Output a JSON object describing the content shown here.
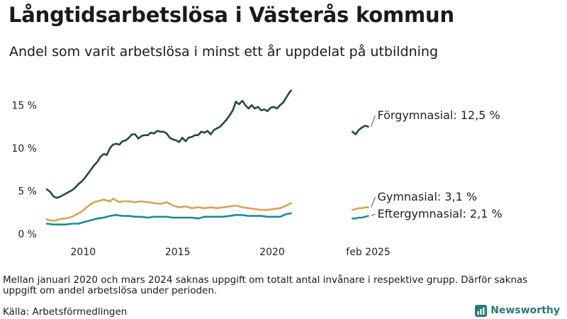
{
  "header": {
    "title": "Långtidsarbetslösa i Västerås kommun",
    "subtitle": "Andel som varit arbetslösa i minst ett år uppdelat på utbildning"
  },
  "footer": {
    "note": "Mellan januari 2020 och mars 2024 saknas uppgift om totalt antal invånare i respektive grupp. Därför saknas uppgift om andel arbetslösa under perioden.",
    "source": "Källa: Arbetsförmedlingen",
    "brand": "Newsworthy"
  },
  "colors": {
    "forgymnasial": "#234a42",
    "gymnasial": "#d6a458",
    "eftergymnasial": "#1a8f88",
    "brand": "#2a7a74"
  },
  "chart_data": {
    "type": "line",
    "x_axis": {
      "tick_labels": [
        "2010",
        "2015",
        "2020",
        "feb 2025"
      ],
      "tick_values": [
        2010,
        2015,
        2020,
        2025.083
      ],
      "range": [
        2008.0,
        2026.0
      ]
    },
    "y_axis": {
      "tick_labels": [
        "0 %",
        "5 %",
        "10 %",
        "15 %"
      ],
      "tick_values": [
        0,
        5,
        10,
        15
      ],
      "range": [
        0,
        17.5
      ]
    },
    "grid": false,
    "legend": "direct labels at right",
    "series": [
      {
        "name": "Förgymnasial",
        "label": "Förgymnasial: 12,5 %",
        "color": "#234a42",
        "segments": [
          [
            [
              2008.08,
              5.2
            ],
            [
              2008.25,
              4.9
            ],
            [
              2008.42,
              4.4
            ],
            [
              2008.58,
              4.2
            ],
            [
              2008.75,
              4.3
            ],
            [
              2008.92,
              4.5
            ],
            [
              2009.08,
              4.7
            ],
            [
              2009.25,
              4.9
            ],
            [
              2009.42,
              5.1
            ],
            [
              2009.58,
              5.4
            ],
            [
              2009.75,
              5.8
            ],
            [
              2009.92,
              6.1
            ],
            [
              2010.08,
              6.5
            ],
            [
              2010.25,
              7.0
            ],
            [
              2010.42,
              7.5
            ],
            [
              2010.58,
              8.0
            ],
            [
              2010.75,
              8.4
            ],
            [
              2010.92,
              9.0
            ],
            [
              2011.08,
              9.3
            ],
            [
              2011.25,
              9.2
            ],
            [
              2011.42,
              10.0
            ],
            [
              2011.58,
              10.4
            ],
            [
              2011.75,
              10.5
            ],
            [
              2011.92,
              10.4
            ],
            [
              2012.08,
              10.8
            ],
            [
              2012.25,
              10.9
            ],
            [
              2012.42,
              11.2
            ],
            [
              2012.58,
              11.6
            ],
            [
              2012.75,
              11.6
            ],
            [
              2012.92,
              11.1
            ],
            [
              2013.08,
              11.4
            ],
            [
              2013.25,
              11.5
            ],
            [
              2013.42,
              11.5
            ],
            [
              2013.58,
              11.8
            ],
            [
              2013.75,
              11.7
            ],
            [
              2013.92,
              12.0
            ],
            [
              2014.08,
              11.9
            ],
            [
              2014.25,
              11.9
            ],
            [
              2014.42,
              11.7
            ],
            [
              2014.58,
              11.2
            ],
            [
              2014.75,
              11.0
            ],
            [
              2014.92,
              10.9
            ],
            [
              2015.08,
              10.7
            ],
            [
              2015.25,
              11.2
            ],
            [
              2015.42,
              10.8
            ],
            [
              2015.58,
              11.2
            ],
            [
              2015.75,
              11.3
            ],
            [
              2015.92,
              11.5
            ],
            [
              2016.08,
              11.5
            ],
            [
              2016.25,
              11.9
            ],
            [
              2016.42,
              11.8
            ],
            [
              2016.58,
              12.0
            ],
            [
              2016.75,
              11.6
            ],
            [
              2016.92,
              12.1
            ],
            [
              2017.08,
              12.3
            ],
            [
              2017.25,
              12.5
            ],
            [
              2017.42,
              12.9
            ],
            [
              2017.58,
              13.3
            ],
            [
              2017.75,
              13.8
            ],
            [
              2017.92,
              14.4
            ],
            [
              2018.08,
              15.4
            ],
            [
              2018.25,
              15.1
            ],
            [
              2018.42,
              15.5
            ],
            [
              2018.58,
              15.0
            ],
            [
              2018.75,
              14.6
            ],
            [
              2018.92,
              15.0
            ],
            [
              2019.08,
              14.6
            ],
            [
              2019.25,
              14.8
            ],
            [
              2019.42,
              14.4
            ],
            [
              2019.58,
              14.5
            ],
            [
              2019.75,
              14.3
            ],
            [
              2019.92,
              14.7
            ],
            [
              2020.08,
              14.8
            ],
            [
              2020.25,
              14.6
            ],
            [
              2020.42,
              15.0
            ],
            [
              2020.58,
              15.3
            ],
            [
              2020.75,
              15.9
            ],
            [
              2020.92,
              16.5
            ],
            [
              2021.0,
              16.7
            ]
          ],
          [
            [
              2024.25,
              11.9
            ],
            [
              2024.42,
              11.6
            ],
            [
              2024.58,
              12.1
            ],
            [
              2024.75,
              12.4
            ],
            [
              2024.92,
              12.6
            ],
            [
              2025.08,
              12.5
            ]
          ]
        ]
      },
      {
        "name": "Gymnasial",
        "label": "Gymnasial:  3,1 %",
        "color": "#d6a458",
        "segments": [
          [
            [
              2008.08,
              1.7
            ],
            [
              2008.25,
              1.6
            ],
            [
              2008.42,
              1.5
            ],
            [
              2008.58,
              1.6
            ],
            [
              2008.75,
              1.7
            ],
            [
              2008.92,
              1.8
            ],
            [
              2009.08,
              1.8
            ],
            [
              2009.25,
              1.9
            ],
            [
              2009.42,
              2.0
            ],
            [
              2009.58,
              2.2
            ],
            [
              2009.75,
              2.4
            ],
            [
              2009.92,
              2.6
            ],
            [
              2010.08,
              2.9
            ],
            [
              2010.25,
              3.2
            ],
            [
              2010.42,
              3.5
            ],
            [
              2010.58,
              3.7
            ],
            [
              2010.75,
              3.8
            ],
            [
              2010.92,
              3.9
            ],
            [
              2011.08,
              4.0
            ],
            [
              2011.25,
              3.9
            ],
            [
              2011.42,
              3.8
            ],
            [
              2011.58,
              4.1
            ],
            [
              2011.75,
              3.9
            ],
            [
              2011.92,
              3.7
            ],
            [
              2012.08,
              3.8
            ],
            [
              2012.42,
              3.8
            ],
            [
              2012.75,
              3.7
            ],
            [
              2013.08,
              3.8
            ],
            [
              2013.42,
              3.7
            ],
            [
              2013.75,
              3.6
            ],
            [
              2014.08,
              3.5
            ],
            [
              2014.42,
              3.7
            ],
            [
              2014.75,
              3.3
            ],
            [
              2015.08,
              3.1
            ],
            [
              2015.42,
              3.2
            ],
            [
              2015.75,
              3.0
            ],
            [
              2016.08,
              3.1
            ],
            [
              2016.42,
              3.0
            ],
            [
              2016.75,
              3.1
            ],
            [
              2017.08,
              3.0
            ],
            [
              2017.42,
              3.1
            ],
            [
              2017.75,
              3.2
            ],
            [
              2018.08,
              3.3
            ],
            [
              2018.42,
              3.1
            ],
            [
              2018.75,
              3.0
            ],
            [
              2019.08,
              2.9
            ],
            [
              2019.42,
              2.8
            ],
            [
              2019.75,
              2.8
            ],
            [
              2020.08,
              2.9
            ],
            [
              2020.42,
              3.0
            ],
            [
              2020.75,
              3.3
            ],
            [
              2021.0,
              3.6
            ]
          ],
          [
            [
              2024.25,
              2.8
            ],
            [
              2024.42,
              2.9
            ],
            [
              2024.58,
              3.0
            ],
            [
              2024.75,
              3.0
            ],
            [
              2024.92,
              3.1
            ],
            [
              2025.08,
              3.1
            ]
          ]
        ]
      },
      {
        "name": "Eftergymnasial",
        "label": "Eftergymnasial:  2,1 %",
        "color": "#1a8f88",
        "segments": [
          [
            [
              2008.08,
              1.2
            ],
            [
              2008.42,
              1.1
            ],
            [
              2008.75,
              1.1
            ],
            [
              2009.08,
              1.1
            ],
            [
              2009.42,
              1.2
            ],
            [
              2009.75,
              1.2
            ],
            [
              2010.08,
              1.4
            ],
            [
              2010.42,
              1.6
            ],
            [
              2010.75,
              1.8
            ],
            [
              2011.08,
              1.9
            ],
            [
              2011.42,
              2.1
            ],
            [
              2011.75,
              2.2
            ],
            [
              2012.08,
              2.1
            ],
            [
              2012.42,
              2.1
            ],
            [
              2012.75,
              2.0
            ],
            [
              2013.08,
              2.0
            ],
            [
              2013.42,
              1.9
            ],
            [
              2013.75,
              2.0
            ],
            [
              2014.08,
              2.0
            ],
            [
              2014.42,
              2.0
            ],
            [
              2014.75,
              1.9
            ],
            [
              2015.08,
              1.9
            ],
            [
              2015.42,
              1.9
            ],
            [
              2015.75,
              1.9
            ],
            [
              2016.08,
              1.8
            ],
            [
              2016.42,
              2.0
            ],
            [
              2016.75,
              2.0
            ],
            [
              2017.08,
              2.0
            ],
            [
              2017.42,
              2.0
            ],
            [
              2017.75,
              2.1
            ],
            [
              2018.08,
              2.2
            ],
            [
              2018.42,
              2.2
            ],
            [
              2018.75,
              2.1
            ],
            [
              2019.08,
              2.1
            ],
            [
              2019.42,
              2.1
            ],
            [
              2019.75,
              2.0
            ],
            [
              2020.08,
              2.0
            ],
            [
              2020.42,
              2.0
            ],
            [
              2020.75,
              2.3
            ],
            [
              2021.0,
              2.4
            ]
          ],
          [
            [
              2024.25,
              1.8
            ],
            [
              2024.42,
              1.8
            ],
            [
              2024.58,
              1.9
            ],
            [
              2024.75,
              1.9
            ],
            [
              2024.92,
              2.0
            ],
            [
              2025.08,
              2.1
            ]
          ]
        ]
      }
    ]
  }
}
